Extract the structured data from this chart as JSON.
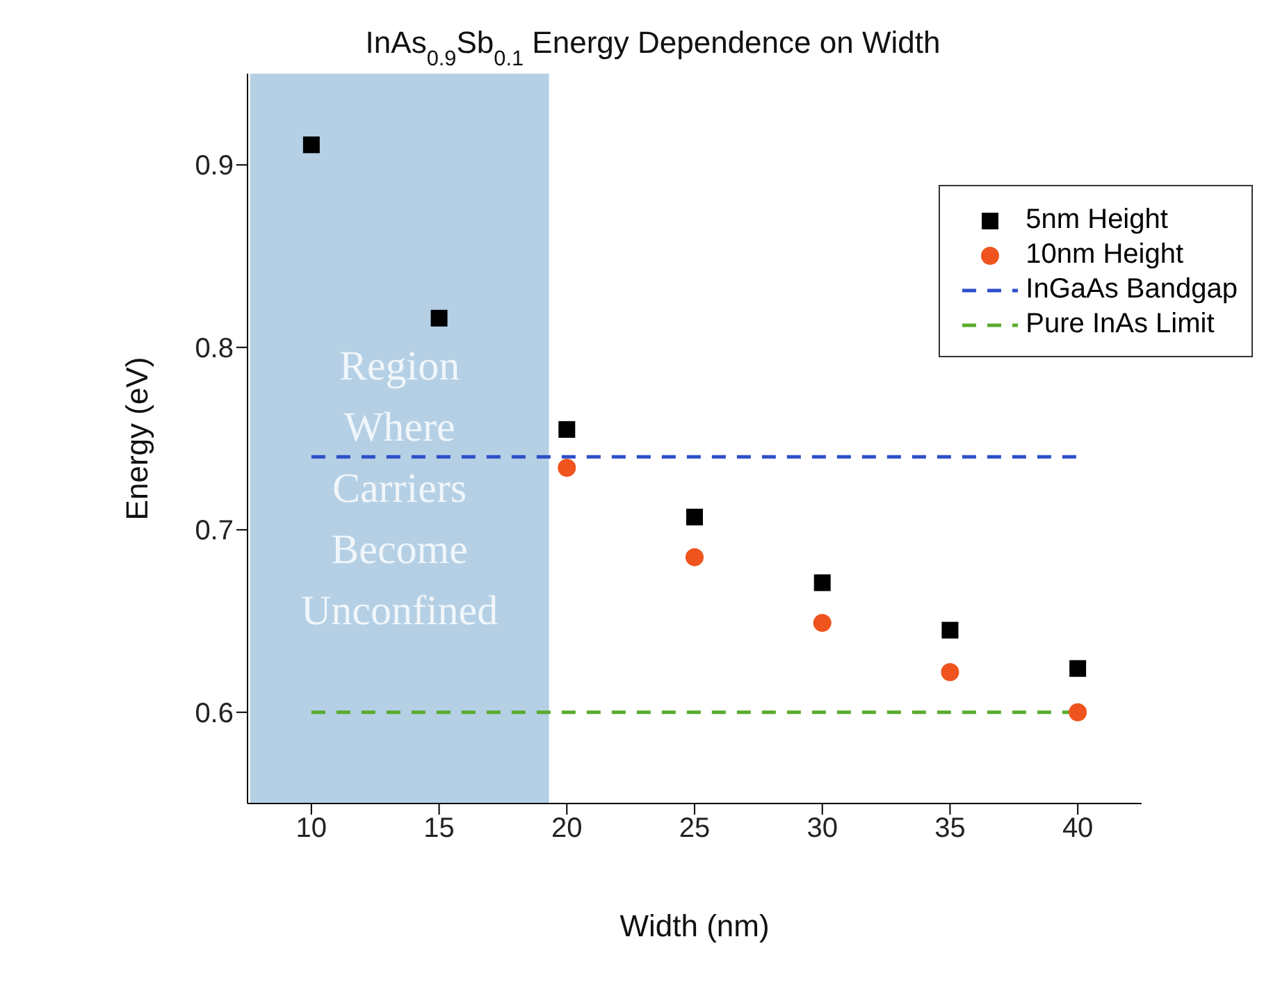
{
  "chart_data": {
    "type": "scatter",
    "title": "InAs$_{0.9}$Sb$_{0.1}$ Energy Dependence on Width",
    "xlabel": "Width (nm)",
    "ylabel": "Energy (eV)",
    "xlim": [
      7.5,
      42.5
    ],
    "xticks": [
      10,
      15,
      20,
      25,
      30,
      35,
      40
    ],
    "ylim": [
      0.55,
      0.95
    ],
    "yticks": [
      0.6,
      0.7,
      0.8,
      0.9
    ],
    "series": [
      {
        "name": "5nm Height",
        "marker": "square",
        "color": "#000000",
        "x": [
          10,
          15,
          20,
          25,
          30,
          35,
          40
        ],
        "values": [
          0.911,
          0.816,
          0.755,
          0.707,
          0.671,
          0.645,
          0.624
        ]
      },
      {
        "name": "10nm Height",
        "marker": "circle",
        "color": "#f0541e",
        "x": [
          20,
          25,
          30,
          35,
          40
        ],
        "values": [
          0.734,
          0.685,
          0.649,
          0.622,
          0.6
        ]
      },
      {
        "name": "InGaAs Bandgap",
        "type": "line",
        "line_style": "dashed",
        "color": "#2e4fc9",
        "x": [
          10,
          40
        ],
        "values": [
          0.74,
          0.74
        ]
      },
      {
        "name": "Pure InAs Limit",
        "type": "line",
        "line_style": "dashed",
        "color": "#5aab2e",
        "x": [
          10,
          40
        ],
        "values": [
          0.6,
          0.6
        ]
      }
    ],
    "bands": [
      {
        "axis": "x",
        "from": 7.6,
        "to": 19.3,
        "label": "Region Where Carriers Become Unconfined",
        "color": "#a8c8e0"
      }
    ],
    "legend": "top right"
  }
}
